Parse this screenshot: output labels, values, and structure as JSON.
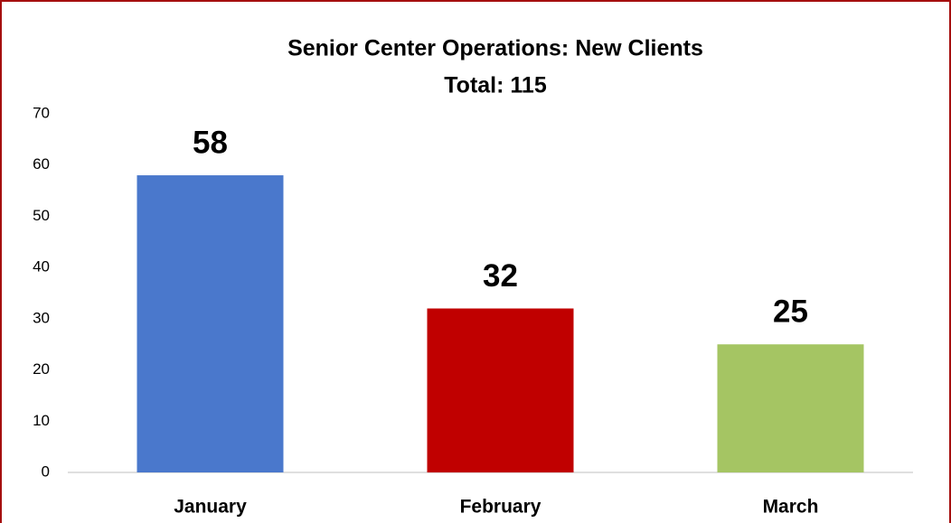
{
  "chart_data": {
    "type": "bar",
    "title": "Senior Center Operations: New Clients",
    "subtitle": "Total: 115",
    "categories": [
      "January",
      "February",
      "March"
    ],
    "values": [
      58,
      32,
      25
    ],
    "colors": [
      "#4a78cc",
      "#c00000",
      "#a5c563"
    ],
    "ylim": [
      0,
      70
    ],
    "yticks": [
      0,
      10,
      20,
      30,
      40,
      50,
      60,
      70
    ],
    "grid": false
  }
}
